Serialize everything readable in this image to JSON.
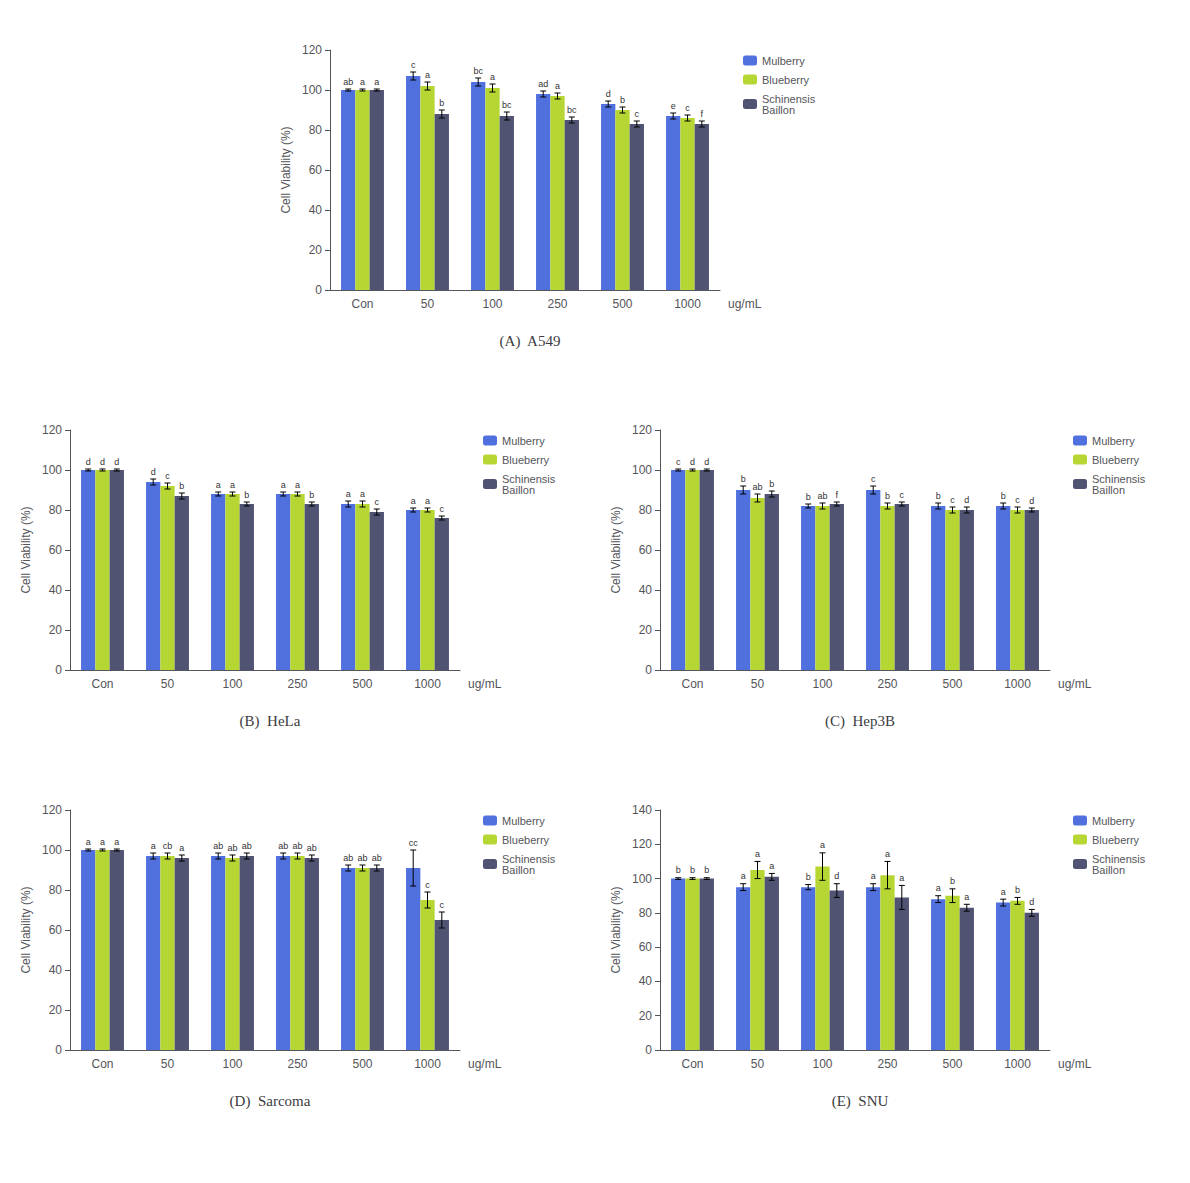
{
  "chart_data": [
    {
      "type": "bar",
      "title": "(A)  A549",
      "ylabel": "Cell Viability (%)",
      "xlabel": "ug/mL",
      "categories": [
        "Con",
        "50",
        "100",
        "250",
        "500",
        "1000"
      ],
      "series": [
        {
          "name": "Mulberry",
          "values": [
            100,
            107,
            104,
            98,
            93,
            87
          ],
          "errors": [
            0.5,
            2,
            2,
            1.5,
            1.5,
            1.5
          ],
          "annotations": [
            "ab",
            "c",
            "bc",
            "ad",
            "d",
            "e"
          ]
        },
        {
          "name": "Blueberry",
          "values": [
            100,
            102,
            101,
            97,
            90,
            86
          ],
          "errors": [
            0.5,
            2,
            2,
            1.5,
            1.5,
            1.5
          ],
          "annotations": [
            "a",
            "a",
            "a",
            "a",
            "b",
            "c"
          ]
        },
        {
          "name": "Schinensis\nBaillon",
          "values": [
            100,
            88,
            87,
            85,
            83,
            83
          ],
          "errors": [
            0.5,
            2,
            2,
            1.5,
            1.5,
            1.5
          ],
          "annotations": [
            "a",
            "b",
            "bc",
            "bc",
            "c",
            "f"
          ]
        }
      ],
      "ylim": [
        0,
        120
      ],
      "yticks": [
        0,
        20,
        40,
        60,
        80,
        100,
        120
      ],
      "grid": false,
      "legend": "upper right"
    },
    {
      "type": "bar",
      "title": "(B)  HeLa",
      "ylabel": "Cell Viability (%)",
      "xlabel": "ug/mL",
      "categories": [
        "Con",
        "50",
        "100",
        "250",
        "500",
        "1000"
      ],
      "series": [
        {
          "name": "Mulberry",
          "values": [
            100,
            94,
            88,
            88,
            83,
            80
          ],
          "errors": [
            0.5,
            1.5,
            1,
            1,
            1.5,
            1
          ],
          "annotations": [
            "d",
            "d",
            "a",
            "a",
            "a",
            "a"
          ]
        },
        {
          "name": "Blueberry",
          "values": [
            100,
            92,
            88,
            88,
            83,
            80
          ],
          "errors": [
            0.5,
            1.5,
            1,
            1,
            1.5,
            1
          ],
          "annotations": [
            "d",
            "c",
            "a",
            "a",
            "a",
            "a"
          ]
        },
        {
          "name": "Schinensis\nBaillon",
          "values": [
            100,
            87,
            83,
            83,
            79,
            76
          ],
          "errors": [
            0.5,
            1.5,
            1,
            1,
            1.5,
            1
          ],
          "annotations": [
            "d",
            "b",
            "b",
            "b",
            "c",
            "c"
          ]
        }
      ],
      "ylim": [
        0,
        120
      ],
      "yticks": [
        0,
        20,
        40,
        60,
        80,
        100,
        120
      ],
      "grid": false,
      "legend": "upper right"
    },
    {
      "type": "bar",
      "title": "(C)  Hep3B",
      "ylabel": "Cell Viability (%)",
      "xlabel": "ug/mL",
      "categories": [
        "Con",
        "50",
        "100",
        "250",
        "500",
        "1000"
      ],
      "series": [
        {
          "name": "Mulberry",
          "values": [
            100,
            90,
            82,
            90,
            82,
            82
          ],
          "errors": [
            0.5,
            2,
            1,
            2,
            1.5,
            1.5
          ],
          "annotations": [
            "c",
            "b",
            "b",
            "c",
            "b",
            "b"
          ]
        },
        {
          "name": "Blueberry",
          "values": [
            100,
            86,
            82,
            82,
            80,
            80
          ],
          "errors": [
            0.5,
            2,
            1.5,
            1.5,
            1.5,
            1.5
          ],
          "annotations": [
            "d",
            "ab",
            "ab",
            "b",
            "c",
            "c"
          ]
        },
        {
          "name": "Schinensis\nBaillon",
          "values": [
            100,
            88,
            83,
            83,
            80,
            80
          ],
          "errors": [
            0.5,
            1.5,
            1,
            1,
            1.5,
            1
          ],
          "annotations": [
            "d",
            "b",
            "f",
            "c",
            "d",
            "d"
          ]
        }
      ],
      "ylim": [
        0,
        120
      ],
      "yticks": [
        0,
        20,
        40,
        60,
        80,
        100,
        120
      ],
      "grid": false,
      "legend": "upper right"
    },
    {
      "type": "bar",
      "title": "(D)  Sarcoma",
      "ylabel": "Cell Viability (%)",
      "xlabel": "ug/mL",
      "categories": [
        "Con",
        "50",
        "100",
        "250",
        "500",
        "1000"
      ],
      "series": [
        {
          "name": "Mulberry",
          "values": [
            100,
            97,
            97,
            97,
            91,
            91
          ],
          "errors": [
            0.5,
            1.5,
            1.5,
            1.5,
            1.5,
            9
          ],
          "annotations": [
            "a",
            "a",
            "ab",
            "ab",
            "ab",
            "cc"
          ]
        },
        {
          "name": "Blueberry",
          "values": [
            100,
            97,
            96,
            97,
            91,
            75
          ],
          "errors": [
            0.5,
            1.5,
            1.5,
            1.5,
            1.5,
            4
          ],
          "annotations": [
            "a",
            "cb",
            "ab",
            "ab",
            "ab",
            "c"
          ]
        },
        {
          "name": "Schinensis\nBaillon",
          "values": [
            100,
            96,
            97,
            96,
            91,
            65
          ],
          "errors": [
            0.5,
            1.5,
            1.5,
            1.5,
            1.5,
            4
          ],
          "annotations": [
            "a",
            "a",
            "ab",
            "ab",
            "ab",
            "c"
          ]
        }
      ],
      "ylim": [
        0,
        120
      ],
      "yticks": [
        0,
        20,
        40,
        60,
        80,
        100,
        120
      ],
      "grid": false,
      "legend": "upper right"
    },
    {
      "type": "bar",
      "title": "(E)  SNU",
      "ylabel": "Cell Viability (%)",
      "xlabel": "ug/mL",
      "categories": [
        "Con",
        "50",
        "100",
        "250",
        "500",
        "1000"
      ],
      "series": [
        {
          "name": "Mulberry",
          "values": [
            100,
            95,
            95,
            95,
            88,
            86
          ],
          "errors": [
            0.5,
            2,
            1.5,
            2,
            2,
            2
          ],
          "annotations": [
            "b",
            "a",
            "b",
            "a",
            "a",
            "a"
          ]
        },
        {
          "name": "Blueberry",
          "values": [
            100,
            105,
            107,
            102,
            90,
            87
          ],
          "errors": [
            0.5,
            5,
            8,
            8,
            4,
            2
          ],
          "annotations": [
            "b",
            "a",
            "a",
            "a",
            "b",
            "b"
          ]
        },
        {
          "name": "Schinensis\nBaillon",
          "values": [
            100,
            101,
            93,
            89,
            83,
            80
          ],
          "errors": [
            0.5,
            2,
            4,
            7,
            2,
            2
          ],
          "annotations": [
            "b",
            "a",
            "d",
            "a",
            "a",
            "d"
          ]
        }
      ],
      "ylim": [
        0,
        140
      ],
      "yticks": [
        0,
        20,
        40,
        60,
        80,
        100,
        120,
        140
      ],
      "grid": false,
      "legend": "upper right"
    }
  ]
}
